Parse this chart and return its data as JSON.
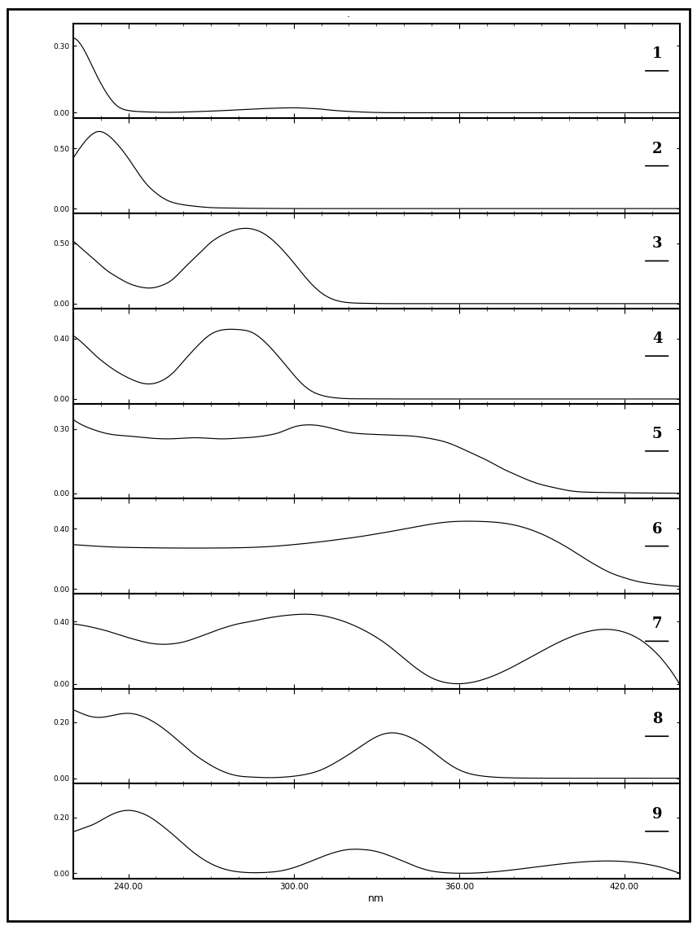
{
  "title": ".",
  "xlabel": "nm",
  "x_range": [
    220,
    440
  ],
  "x_ticks": [
    240.0,
    300.0,
    360.0,
    420.0
  ],
  "x_tick_labels": [
    "240.00",
    "300.00",
    "360.00",
    "420.00"
  ],
  "panels": [
    {
      "label": "1",
      "yticks": [
        0.0,
        0.3
      ],
      "ylim": [
        -0.025,
        0.4
      ],
      "curve": {
        "x": [
          220,
          224,
          228,
          232,
          236,
          240,
          244,
          248,
          252,
          256,
          260,
          265,
          270,
          275,
          280,
          285,
          290,
          295,
          300,
          305,
          310,
          315,
          320,
          325,
          330,
          340,
          350,
          360,
          440
        ],
        "y": [
          0.335,
          0.28,
          0.18,
          0.09,
          0.03,
          0.01,
          0.005,
          0.003,
          0.002,
          0.002,
          0.003,
          0.005,
          0.007,
          0.01,
          0.013,
          0.016,
          0.019,
          0.021,
          0.022,
          0.02,
          0.016,
          0.01,
          0.006,
          0.003,
          0.001,
          0.0,
          0.0,
          0.0,
          0.0
        ]
      }
    },
    {
      "label": "2",
      "yticks": [
        0.0,
        0.5
      ],
      "ylim": [
        -0.04,
        0.75
      ],
      "curve": {
        "x": [
          220,
          223,
          226,
          229,
          232,
          235,
          238,
          242,
          246,
          250,
          254,
          258,
          262,
          266,
          270,
          275,
          280,
          285,
          290,
          295,
          300,
          310,
          320,
          330,
          340,
          350,
          360,
          440
        ],
        "y": [
          0.42,
          0.52,
          0.6,
          0.64,
          0.62,
          0.56,
          0.48,
          0.35,
          0.22,
          0.13,
          0.07,
          0.04,
          0.025,
          0.015,
          0.008,
          0.005,
          0.003,
          0.002,
          0.001,
          0.001,
          0.0,
          0.0,
          0.0,
          0.0,
          0.0,
          0.0,
          0.0,
          0.0
        ]
      }
    },
    {
      "label": "3",
      "yticks": [
        0.0,
        0.5
      ],
      "ylim": [
        -0.04,
        0.75
      ],
      "curve": {
        "x": [
          220,
          224,
          228,
          232,
          236,
          240,
          244,
          248,
          252,
          256,
          260,
          265,
          270,
          275,
          280,
          285,
          290,
          295,
          300,
          305,
          310,
          315,
          320,
          325,
          330,
          335,
          340,
          345,
          350,
          355,
          360,
          440
        ],
        "y": [
          0.52,
          0.44,
          0.36,
          0.28,
          0.22,
          0.17,
          0.14,
          0.13,
          0.15,
          0.2,
          0.29,
          0.4,
          0.51,
          0.58,
          0.62,
          0.62,
          0.57,
          0.47,
          0.34,
          0.2,
          0.09,
          0.03,
          0.008,
          0.003,
          0.001,
          0.0,
          0.0,
          0.0,
          0.0,
          0.0,
          0.0,
          0.0
        ]
      }
    },
    {
      "label": "4",
      "yticks": [
        0.0,
        0.4
      ],
      "ylim": [
        -0.03,
        0.6
      ],
      "curve": {
        "x": [
          220,
          224,
          228,
          232,
          236,
          240,
          244,
          248,
          252,
          256,
          260,
          265,
          270,
          275,
          280,
          285,
          290,
          295,
          300,
          305,
          310,
          315,
          320,
          325,
          330,
          335,
          340,
          345,
          350,
          440
        ],
        "y": [
          0.42,
          0.36,
          0.29,
          0.23,
          0.18,
          0.14,
          0.11,
          0.1,
          0.12,
          0.17,
          0.25,
          0.35,
          0.43,
          0.46,
          0.46,
          0.44,
          0.37,
          0.27,
          0.16,
          0.07,
          0.025,
          0.008,
          0.002,
          0.001,
          0.0,
          0.0,
          0.0,
          0.0,
          0.0,
          0.0
        ]
      }
    },
    {
      "label": "5",
      "yticks": [
        0.0,
        0.3
      ],
      "ylim": [
        -0.025,
        0.42
      ],
      "curve": {
        "x": [
          220,
          224,
          228,
          232,
          236,
          240,
          244,
          248,
          252,
          256,
          260,
          264,
          268,
          272,
          276,
          280,
          285,
          290,
          295,
          300,
          305,
          310,
          315,
          320,
          325,
          330,
          335,
          340,
          345,
          350,
          355,
          360,
          365,
          370,
          375,
          380,
          385,
          390,
          395,
          400,
          410,
          420,
          430,
          440
        ],
        "y": [
          0.345,
          0.315,
          0.295,
          0.28,
          0.272,
          0.268,
          0.263,
          0.258,
          0.255,
          0.255,
          0.258,
          0.26,
          0.258,
          0.255,
          0.255,
          0.258,
          0.262,
          0.27,
          0.285,
          0.31,
          0.32,
          0.315,
          0.3,
          0.285,
          0.278,
          0.275,
          0.272,
          0.27,
          0.265,
          0.255,
          0.24,
          0.215,
          0.185,
          0.155,
          0.12,
          0.09,
          0.062,
          0.04,
          0.025,
          0.012,
          0.004,
          0.002,
          0.001,
          0.0
        ]
      }
    },
    {
      "label": "6",
      "yticks": [
        0.0,
        0.4
      ],
      "ylim": [
        -0.03,
        0.6
      ],
      "curve": {
        "x": [
          220,
          228,
          236,
          244,
          252,
          260,
          268,
          276,
          284,
          292,
          300,
          308,
          316,
          324,
          332,
          340,
          348,
          356,
          364,
          370,
          375,
          380,
          385,
          390,
          395,
          400,
          405,
          410,
          415,
          420,
          425,
          430,
          435,
          440
        ],
        "y": [
          0.295,
          0.285,
          0.278,
          0.275,
          0.273,
          0.272,
          0.272,
          0.273,
          0.276,
          0.283,
          0.295,
          0.31,
          0.328,
          0.348,
          0.372,
          0.398,
          0.425,
          0.445,
          0.45,
          0.447,
          0.44,
          0.425,
          0.4,
          0.365,
          0.32,
          0.268,
          0.21,
          0.155,
          0.108,
          0.075,
          0.05,
          0.035,
          0.025,
          0.018
        ]
      }
    },
    {
      "label": "7",
      "yticks": [
        0.0,
        0.4
      ],
      "ylim": [
        -0.03,
        0.58
      ],
      "curve": {
        "x": [
          220,
          224,
          228,
          232,
          236,
          240,
          244,
          248,
          252,
          256,
          260,
          264,
          268,
          272,
          276,
          280,
          284,
          288,
          292,
          296,
          300,
          305,
          310,
          315,
          320,
          325,
          330,
          335,
          340,
          345,
          350,
          355,
          360,
          440
        ],
        "y": [
          0.385,
          0.375,
          0.36,
          0.342,
          0.32,
          0.298,
          0.278,
          0.262,
          0.255,
          0.258,
          0.27,
          0.292,
          0.318,
          0.345,
          0.368,
          0.387,
          0.4,
          0.415,
          0.428,
          0.438,
          0.445,
          0.448,
          0.44,
          0.42,
          0.39,
          0.35,
          0.3,
          0.238,
          0.165,
          0.095,
          0.04,
          0.01,
          0.002,
          0.0
        ]
      }
    },
    {
      "label": "8",
      "yticks": [
        0.0,
        0.2
      ],
      "ylim": [
        -0.02,
        0.32
      ],
      "curve": {
        "x": [
          220,
          224,
          228,
          232,
          236,
          240,
          244,
          248,
          252,
          256,
          260,
          264,
          268,
          272,
          276,
          280,
          285,
          290,
          295,
          300,
          305,
          310,
          315,
          320,
          325,
          330,
          335,
          340,
          345,
          350,
          355,
          360,
          370,
          380,
          390,
          400,
          420,
          440
        ],
        "y": [
          0.245,
          0.228,
          0.218,
          0.22,
          0.228,
          0.232,
          0.225,
          0.208,
          0.183,
          0.152,
          0.118,
          0.085,
          0.058,
          0.035,
          0.018,
          0.008,
          0.004,
          0.002,
          0.003,
          0.007,
          0.015,
          0.03,
          0.055,
          0.085,
          0.118,
          0.148,
          0.162,
          0.155,
          0.132,
          0.098,
          0.06,
          0.03,
          0.006,
          0.001,
          0.0,
          0.0,
          0.0,
          0.0
        ]
      }
    },
    {
      "label": "9",
      "yticks": [
        0.0,
        0.2
      ],
      "ylim": [
        -0.02,
        0.32
      ],
      "curve": {
        "x": [
          220,
          224,
          228,
          232,
          236,
          240,
          244,
          248,
          252,
          256,
          260,
          264,
          268,
          272,
          276,
          280,
          285,
          290,
          295,
          300,
          305,
          310,
          315,
          320,
          325,
          330,
          335,
          340,
          345,
          350,
          355,
          360,
          440
        ],
        "y": [
          0.148,
          0.162,
          0.178,
          0.2,
          0.218,
          0.225,
          0.218,
          0.2,
          0.172,
          0.14,
          0.105,
          0.072,
          0.045,
          0.025,
          0.012,
          0.005,
          0.002,
          0.003,
          0.008,
          0.02,
          0.038,
          0.058,
          0.075,
          0.085,
          0.085,
          0.078,
          0.062,
          0.042,
          0.022,
          0.008,
          0.002,
          0.0,
          0.0
        ]
      }
    }
  ],
  "line_color": "#000000",
  "bg_color": "#ffffff",
  "panel_bg": "#ffffff",
  "border_color": "#000000",
  "outer_border_lw": 1.5,
  "panel_border_lw": 1.0
}
